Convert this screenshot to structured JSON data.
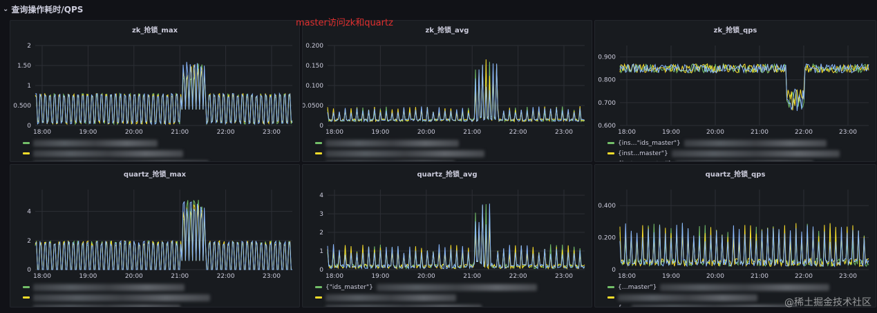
{
  "row": {
    "title": "查询操作耗时/QPS"
  },
  "annotation": "master访问zk和quartz",
  "watermark": "@稀土掘金技术社区",
  "colors": {
    "green": "#73bf69",
    "yellow": "#fade2a",
    "blue": "#8ab8ff"
  },
  "legend_visible": [
    [],
    [],
    [
      "{ins…\"ids_master\"}",
      "{inst…master\"}",
      "{insta…master\"}"
    ],
    [],
    [
      "{\"ids_master\"}",
      "",
      ""
    ],
    [
      "{…master\"}",
      "",
      "{…"
    ]
  ],
  "chart_data": [
    {
      "type": "line",
      "title": "zk_抢锁_max",
      "x_ticks": [
        "18:00",
        "19:00",
        "20:00",
        "21:00",
        "22:00",
        "23:00"
      ],
      "y_ticks": [
        "0",
        "0.500",
        "1",
        "1.50",
        "2"
      ],
      "ylim": [
        0,
        2
      ],
      "baseline": 0.4,
      "amp": 0.35,
      "peak": 1.6,
      "peak_range": [
        0.57,
        0.66
      ],
      "dip": null,
      "pattern": "square"
    },
    {
      "type": "line",
      "title": "zk_抢锁_avg",
      "x_ticks": [
        "18:00",
        "19:00",
        "20:00",
        "21:00",
        "22:00",
        "23:00"
      ],
      "y_ticks": [
        "0",
        "0.0500",
        "0.100",
        "0.150",
        "0.200"
      ],
      "ylim": [
        0,
        0.2
      ],
      "baseline": 0.01,
      "amp": 0.035,
      "peak": 0.17,
      "peak_range": [
        0.57,
        0.66
      ],
      "dip": null,
      "pattern": "spike"
    },
    {
      "type": "line",
      "title": "zk_抢锁_qps",
      "x_ticks": [
        "18:00",
        "19:00",
        "20:00",
        "21:00",
        "22:00",
        "23:00"
      ],
      "y_ticks": [
        "0.600",
        "0.700",
        "0.800",
        "0.900"
      ],
      "ylim": [
        0.6,
        0.95
      ],
      "baseline": 0.85,
      "amp": 0.02,
      "peak": null,
      "peak_range": null,
      "dip": [
        0.67,
        0.74
      ],
      "pattern": "flat"
    },
    {
      "type": "line",
      "title": "quartz_抢锁_max",
      "x_ticks": [
        "18:00",
        "19:00",
        "20:00",
        "21:00",
        "22:00",
        "23:00"
      ],
      "y_ticks": [
        "0",
        "2",
        "4"
      ],
      "ylim": [
        0,
        5.5
      ],
      "baseline": 0.6,
      "amp": 1.2,
      "peak": 4.8,
      "peak_range": [
        0.57,
        0.66
      ],
      "dip": null,
      "pattern": "square"
    },
    {
      "type": "line",
      "title": "quartz_抢锁_avg",
      "x_ticks": [
        "18:00",
        "19:00",
        "20:00",
        "21:00",
        "22:00",
        "23:00"
      ],
      "y_ticks": [
        "0",
        "1",
        "2",
        "3",
        "4"
      ],
      "ylim": [
        0,
        4.3
      ],
      "baseline": 0.05,
      "amp": 1.2,
      "peak": 3.6,
      "peak_range": [
        0.57,
        0.64
      ],
      "dip": null,
      "pattern": "spike"
    },
    {
      "type": "line",
      "title": "quartz_抢锁_qps",
      "x_ticks": [
        "18:00",
        "19:00",
        "20:00",
        "21:00",
        "22:00",
        "23:00"
      ],
      "y_ticks": [
        "0",
        "0.200",
        "0.400"
      ],
      "ylim": [
        0,
        0.5
      ],
      "baseline": 0.02,
      "amp": 0.25,
      "peak": null,
      "peak_range": null,
      "dip": null,
      "pattern": "spike"
    }
  ]
}
